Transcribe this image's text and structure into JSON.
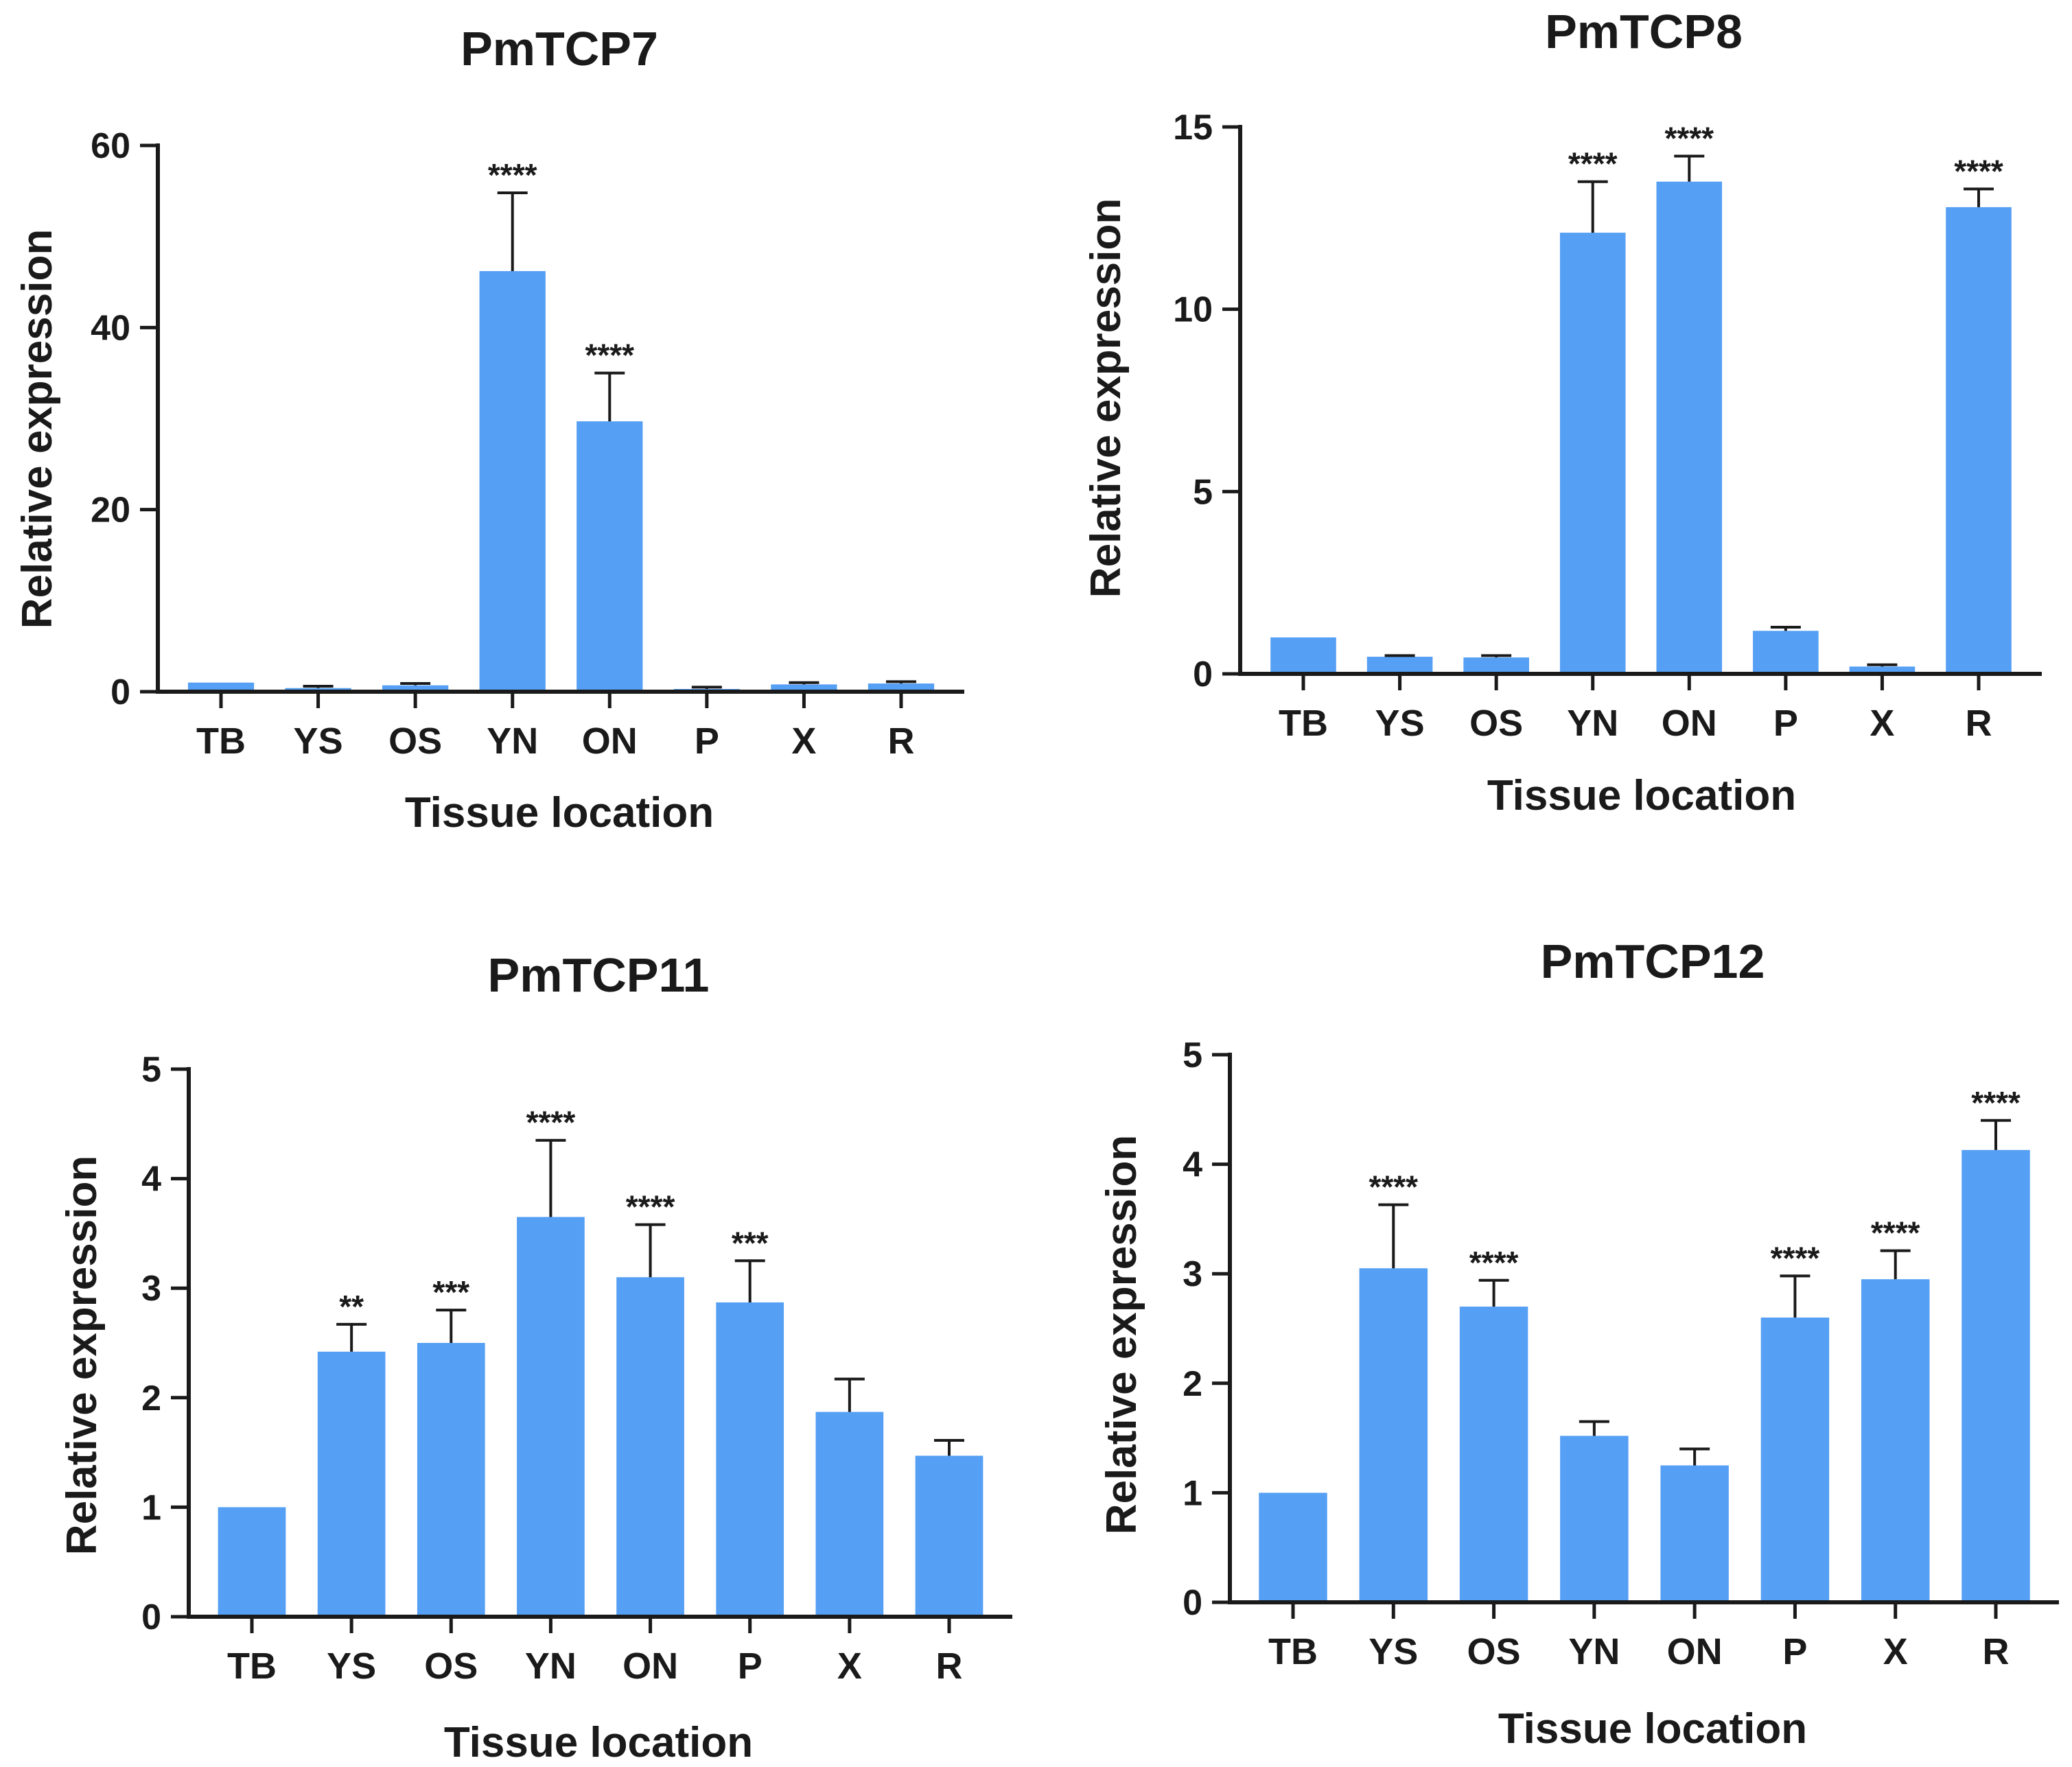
{
  "chart_data": [
    {
      "type": "bar",
      "title": "PmTCP7",
      "xlabel": "Tissue location",
      "ylabel": "Relative expression",
      "ylim": [
        0,
        60
      ],
      "yticks": [
        0,
        20,
        40,
        60
      ],
      "categories": [
        "TB",
        "YS",
        "OS",
        "YN",
        "ON",
        "P",
        "X",
        "R"
      ],
      "values": [
        1.0,
        0.4,
        0.7,
        46.2,
        29.7,
        0.3,
        0.8,
        0.9
      ],
      "errors": [
        0.0,
        0.2,
        0.2,
        8.6,
        5.3,
        0.2,
        0.2,
        0.2
      ],
      "significance": [
        "",
        "",
        "",
        "****",
        "****",
        "",
        "",
        ""
      ]
    },
    {
      "type": "bar",
      "title": "PmTCP8",
      "xlabel": "Tissue location",
      "ylabel": "Relative expression",
      "ylim": [
        0,
        15
      ],
      "yticks": [
        0,
        5,
        10,
        15
      ],
      "categories": [
        "TB",
        "YS",
        "OS",
        "YN",
        "ON",
        "P",
        "X",
        "R"
      ],
      "values": [
        1.0,
        0.47,
        0.45,
        12.1,
        13.5,
        1.18,
        0.2,
        12.8
      ],
      "errors": [
        0.0,
        0.03,
        0.05,
        1.4,
        0.7,
        0.1,
        0.05,
        0.5
      ],
      "significance": [
        "",
        "",
        "",
        "****",
        "****",
        "",
        "",
        "****"
      ]
    },
    {
      "type": "bar",
      "title": "PmTCP11",
      "xlabel": "Tissue location",
      "ylabel": "Relative expression",
      "ylim": [
        0,
        5
      ],
      "yticks": [
        0,
        1,
        2,
        3,
        4,
        5
      ],
      "categories": [
        "TB",
        "YS",
        "OS",
        "YN",
        "ON",
        "P",
        "X",
        "R"
      ],
      "values": [
        1.0,
        2.42,
        2.5,
        3.65,
        3.1,
        2.87,
        1.87,
        1.47
      ],
      "errors": [
        0.0,
        0.25,
        0.3,
        0.7,
        0.48,
        0.38,
        0.3,
        0.14
      ],
      "significance": [
        "",
        "**",
        "***",
        "****",
        "****",
        "***",
        "",
        ""
      ]
    },
    {
      "type": "bar",
      "title": "PmTCP12",
      "xlabel": "Tissue location",
      "ylabel": "Relative expression",
      "ylim": [
        0,
        5
      ],
      "yticks": [
        0,
        1,
        2,
        3,
        4,
        5
      ],
      "categories": [
        "TB",
        "YS",
        "OS",
        "YN",
        "ON",
        "P",
        "X",
        "R"
      ],
      "values": [
        1.0,
        3.05,
        2.7,
        1.52,
        1.25,
        2.6,
        2.95,
        4.13
      ],
      "errors": [
        0.0,
        0.58,
        0.24,
        0.13,
        0.15,
        0.38,
        0.26,
        0.27
      ],
      "significance": [
        "",
        "****",
        "****",
        "",
        "",
        "****",
        "****",
        "****"
      ]
    }
  ],
  "colors": {
    "bar": "#559ff4",
    "axis": "#1a1a1a",
    "background": "#ffffff"
  }
}
